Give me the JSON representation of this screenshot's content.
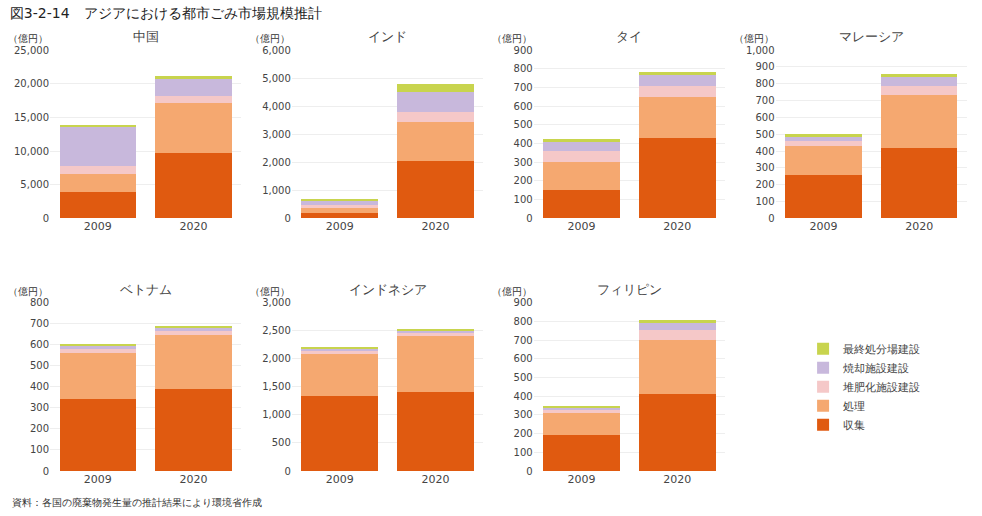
{
  "title": "図3-2-14　アジアにおける都市ごみ市場規模推計",
  "subtitle": "資料：各国の廃棄物発生量の推計結果により環境省作成",
  "legend": "lower right",
  "chart_data": [
    {
      "type": "bar",
      "stacked": true,
      "grid": true,
      "title": "中国",
      "ylabel": "（億円）",
      "categories": [
        "2009",
        "2020"
      ],
      "series": [
        {
          "name": "収集",
          "color": "#e05a10",
          "values": [
            3900,
            9700
          ]
        },
        {
          "name": "処理",
          "color": "#f5a870",
          "values": [
            2700,
            7500
          ]
        },
        {
          "name": "堆肥化施設建設",
          "color": "#f5c8c8",
          "values": [
            1200,
            900
          ]
        },
        {
          "name": "焼却施設建設",
          "color": "#c8b8dc",
          "values": [
            5800,
            2600
          ]
        },
        {
          "name": "最終処分場建設",
          "color": "#c8d44e",
          "values": [
            300,
            500
          ]
        }
      ],
      "ylim": [
        0,
        25000
      ],
      "yticks": [
        0,
        {
          "value": 5000,
          "label": "5,000"
        },
        {
          "value": 10000,
          "label": "10,000"
        },
        {
          "value": 15000,
          "label": "15,000"
        },
        {
          "value": 20000,
          "label": "20,000"
        },
        {
          "value": 25000,
          "label": "25,000"
        }
      ]
    },
    {
      "type": "bar",
      "stacked": true,
      "grid": true,
      "title": "インド",
      "ylabel": "（億円）",
      "categories": [
        "2009",
        "2020"
      ],
      "series": [
        {
          "name": "収集",
          "color": "#e05a10",
          "values": [
            200,
            2050
          ]
        },
        {
          "name": "処理",
          "color": "#f5a870",
          "values": [
            180,
            1400
          ]
        },
        {
          "name": "堆肥化施設建設",
          "color": "#f5c8c8",
          "values": [
            100,
            350
          ]
        },
        {
          "name": "焼却施設建設",
          "color": "#c8b8dc",
          "values": [
            150,
            700
          ]
        },
        {
          "name": "最終処分場建設",
          "color": "#c8d44e",
          "values": [
            50,
            300
          ]
        }
      ],
      "ylim": [
        0,
        6000
      ],
      "yticks": [
        0,
        {
          "value": 1000,
          "label": "1,000"
        },
        {
          "value": 2000,
          "label": "2,000"
        },
        {
          "value": 3000,
          "label": "3,000"
        },
        {
          "value": 4000,
          "label": "4,000"
        },
        {
          "value": 5000,
          "label": "5,000"
        },
        {
          "value": 6000,
          "label": "6,000"
        }
      ]
    },
    {
      "type": "bar",
      "stacked": true,
      "grid": true,
      "title": "タイ",
      "ylabel": "（億円）",
      "categories": [
        "2009",
        "2020"
      ],
      "series": [
        {
          "name": "収集",
          "color": "#e05a10",
          "values": [
            150,
            430
          ]
        },
        {
          "name": "処理",
          "color": "#f5a870",
          "values": [
            150,
            220
          ]
        },
        {
          "name": "堆肥化施設建設",
          "color": "#f5c8c8",
          "values": [
            60,
            60
          ]
        },
        {
          "name": "焼却施設建設",
          "color": "#c8b8dc",
          "values": [
            50,
            55
          ]
        },
        {
          "name": "最終処分場建設",
          "color": "#c8d44e",
          "values": [
            15,
            15
          ]
        }
      ],
      "ylim": [
        0,
        900
      ],
      "yticks": [
        0,
        100,
        200,
        300,
        400,
        500,
        600,
        700,
        800,
        900
      ]
    },
    {
      "type": "bar",
      "stacked": true,
      "grid": true,
      "title": "マレーシア",
      "ylabel": "（億円）",
      "categories": [
        "2009",
        "2020"
      ],
      "series": [
        {
          "name": "収集",
          "color": "#e05a10",
          "values": [
            260,
            420
          ]
        },
        {
          "name": "処理",
          "color": "#f5a870",
          "values": [
            170,
            310
          ]
        },
        {
          "name": "堆肥化施設建設",
          "color": "#f5c8c8",
          "values": [
            30,
            55
          ]
        },
        {
          "name": "焼却施設建設",
          "color": "#c8b8dc",
          "values": [
            25,
            55
          ]
        },
        {
          "name": "最終処分場建設",
          "color": "#c8d44e",
          "values": [
            15,
            15
          ]
        }
      ],
      "ylim": [
        0,
        1000
      ],
      "yticks": [
        0,
        100,
        200,
        300,
        400,
        500,
        600,
        700,
        800,
        900,
        {
          "value": 1000,
          "label": "1,000"
        }
      ]
    },
    {
      "type": "bar",
      "stacked": true,
      "grid": true,
      "title": "ベトナム",
      "ylabel": "（億円）",
      "categories": [
        "2009",
        "2020"
      ],
      "series": [
        {
          "name": "収集",
          "color": "#e05a10",
          "values": [
            340,
            390
          ]
        },
        {
          "name": "処理",
          "color": "#f5a870",
          "values": [
            220,
            255
          ]
        },
        {
          "name": "堆肥化施設建設",
          "color": "#f5c8c8",
          "values": [
            20,
            20
          ]
        },
        {
          "name": "焼却施設建設",
          "color": "#c8b8dc",
          "values": [
            15,
            15
          ]
        },
        {
          "name": "最終処分場建設",
          "color": "#c8d44e",
          "values": [
            10,
            10
          ]
        }
      ],
      "ylim": [
        0,
        800
      ],
      "yticks": [
        0,
        100,
        200,
        300,
        400,
        500,
        600,
        700,
        800
      ]
    },
    {
      "type": "bar",
      "stacked": true,
      "grid": true,
      "title": "インドネシア",
      "ylabel": "（億円）",
      "categories": [
        "2009",
        "2020"
      ],
      "series": [
        {
          "name": "収集",
          "color": "#e05a10",
          "values": [
            1330,
            1400
          ]
        },
        {
          "name": "処理",
          "color": "#f5a870",
          "values": [
            760,
            1000
          ]
        },
        {
          "name": "堆肥化施設建設",
          "color": "#f5c8c8",
          "values": [
            55,
            55
          ]
        },
        {
          "name": "焼却施設建設",
          "color": "#c8b8dc",
          "values": [
            45,
            50
          ]
        },
        {
          "name": "最終処分場建設",
          "color": "#c8d44e",
          "values": [
            20,
            20
          ]
        }
      ],
      "ylim": [
        0,
        3000
      ],
      "yticks": [
        0,
        500,
        {
          "value": 1000,
          "label": "1,000"
        },
        {
          "value": 1500,
          "label": "1,500"
        },
        {
          "value": 2000,
          "label": "2,000"
        },
        {
          "value": 2500,
          "label": "2,500"
        },
        {
          "value": 3000,
          "label": "3,000"
        }
      ]
    },
    {
      "type": "bar",
      "stacked": true,
      "grid": true,
      "title": "フィリピン",
      "ylabel": "（億円）",
      "categories": [
        "2009",
        "2020"
      ],
      "series": [
        {
          "name": "収集",
          "color": "#e05a10",
          "values": [
            195,
            410
          ]
        },
        {
          "name": "処理",
          "color": "#f5a870",
          "values": [
            115,
            290
          ]
        },
        {
          "name": "堆肥化施設建設",
          "color": "#f5c8c8",
          "values": [
            20,
            55
          ]
        },
        {
          "name": "焼却施設建設",
          "color": "#c8b8dc",
          "values": [
            10,
            40
          ]
        },
        {
          "name": "最終処分場建設",
          "color": "#c8d44e",
          "values": [
            5,
            10
          ]
        }
      ],
      "ylim": [
        0,
        900
      ],
      "yticks": [
        0,
        100,
        200,
        300,
        400,
        500,
        600,
        700,
        800,
        900
      ]
    }
  ]
}
